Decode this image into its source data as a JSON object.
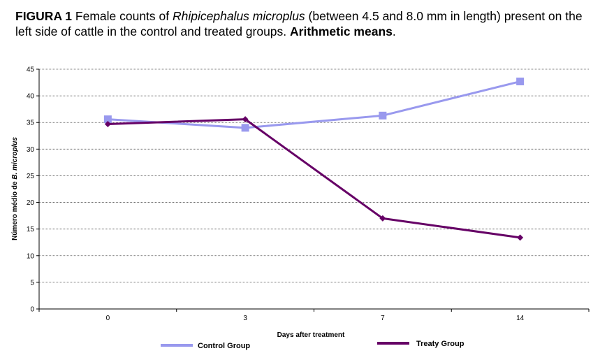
{
  "caption": {
    "label": "FIGURA 1",
    "text_a": " Female counts of ",
    "species": "Rhipicephalus microplus",
    "text_b": " (between 4.5 and 8.0 mm in length) present on the left side of cattle in the control and treated groups. ",
    "emphasis": "Arithmetic means",
    "text_c": "."
  },
  "chart_data": {
    "type": "line",
    "categories": [
      "0",
      "3",
      "7",
      "14"
    ],
    "xlabel": "Days after treatment",
    "ylabel_prefix": "Número médio de ",
    "ylabel_italic": "B. microplus",
    "ylim": [
      0,
      45
    ],
    "yticks": [
      "0",
      "5",
      "10",
      "15",
      "20",
      "25",
      "30",
      "35",
      "40",
      "45"
    ],
    "grid": "horizontal dotted",
    "legend_position": "bottom",
    "series": [
      {
        "name": "Control Group",
        "values": [
          35.6,
          34.0,
          36.3,
          42.7
        ],
        "color": "#9999ee",
        "marker": "square"
      },
      {
        "name": "Treaty Group",
        "values": [
          34.7,
          35.6,
          17.0,
          13.4
        ],
        "color": "#660066",
        "marker": "diamond"
      }
    ]
  }
}
